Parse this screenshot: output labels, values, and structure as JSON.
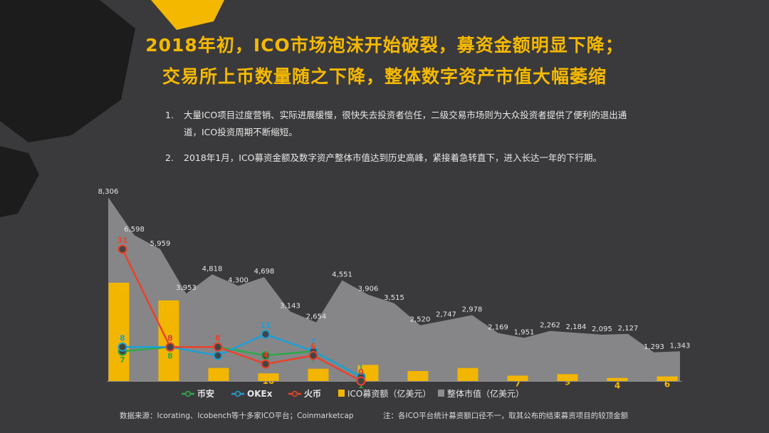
{
  "title_line1": "2018年初，ICO市场泡沫开始破裂，募资金额明显下降；",
  "title_line2": "交易所上币数量随之下降，整体数字资产市值大幅萎缩",
  "bullets": [
    {
      "num": "1.",
      "text": "大量ICO项目过度营销、实际进展缓慢，很快失去投资者信任，二级交易市场则为大众投资者提供了便利的退出通道，ICO投资周期不断缩短。"
    },
    {
      "num": "2.",
      "text": "2018年1月，ICO募资金额及数字资产整体市值达到历史高峰，紧接着急转直下，进入长达一年的下行期。"
    }
  ],
  "source": "数据来源：Icorating、Icobench等十多家ICO平台；Coinmarketcap",
  "note": "注：各ICO平台统计募资额口径不一，取其公布的结束募资项目的较顶金额",
  "colors": {
    "title": "#f5b800",
    "bar": "#f2b600",
    "area": "#8d8d8f",
    "binance": "#2ea84a",
    "okex": "#1e9fd6",
    "huobi": "#e8432a",
    "background": "#3a3a3c"
  },
  "chart_data": {
    "type": "bar+area+line",
    "market_cap": {
      "name": "整体市值（亿美元）",
      "values": [
        8306,
        6598,
        5959,
        3953,
        4818,
        4300,
        4698,
        3143,
        2654,
        4551,
        3906,
        3515,
        2520,
        2747,
        2978,
        2169,
        1951,
        2262,
        2184,
        2095,
        2127,
        1293,
        1343
      ],
      "labels": [
        "8,306",
        "6,598",
        "5,959",
        "3,953",
        "4,818",
        "4,300",
        "4,698",
        "3,143",
        "2,654",
        "4,551",
        "3,906",
        "3,515",
        "2,520",
        "2,747",
        "2,978",
        "2,169",
        "1,951",
        "2,262",
        "2,184",
        "2,095",
        "2,127",
        "1,293",
        "1,343"
      ]
    },
    "ico": {
      "name": "ICO募资额（亿美元）",
      "values": [
        128,
        105,
        17,
        10,
        16,
        21,
        13,
        17,
        7,
        9,
        4,
        6
      ]
    },
    "exchanges": [
      {
        "name": "币安",
        "color": "#2ea84a",
        "values": [
          7,
          8,
          8,
          6,
          7,
          1
        ],
        "labels": [
          "7",
          "8",
          "8",
          "6",
          "7",
          "1"
        ]
      },
      {
        "name": "OKEx",
        "color": "#1e9fd6",
        "values": [
          8,
          8,
          6,
          11,
          7,
          1
        ],
        "labels": [
          "8",
          "8",
          "6",
          "11",
          "7",
          "1"
        ]
      },
      {
        "name": "火币",
        "color": "#e8432a",
        "values": [
          31,
          8,
          8,
          4,
          6,
          0
        ],
        "labels": [
          "31",
          "8",
          "8",
          "4",
          "6",
          "0"
        ]
      }
    ],
    "legend": [
      {
        "label": "币安",
        "kind": "line",
        "color": "#2ea84a"
      },
      {
        "label": "OKEx",
        "kind": "line",
        "color": "#1e9fd6"
      },
      {
        "label": "火币",
        "kind": "line",
        "color": "#e8432a"
      },
      {
        "label": "ICO募资额（亿美元）",
        "kind": "bar",
        "color": "#f2b600"
      },
      {
        "label": "整体市值（亿美元）",
        "kind": "area",
        "color": "#8d8d8f"
      }
    ]
  }
}
